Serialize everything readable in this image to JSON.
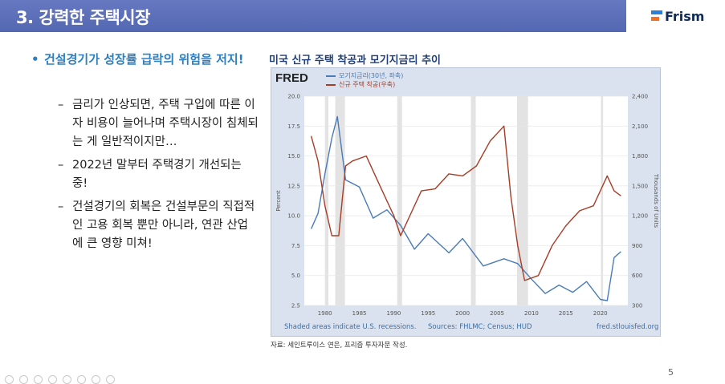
{
  "header": {
    "title": "3. 강력한 주택시장"
  },
  "logo": {
    "text": "Frism",
    "colors": [
      "#2a7fd6",
      "#f36f21"
    ]
  },
  "main_bullet": "건설경기가 성장률 급락의 위험을 저지!",
  "sub_bullets": [
    "금리가 인상되면, 주택 구입에 따른 이자 비용이 늘어나며 주택시장이 침체되는 게 일반적이지만…",
    "2022년 말부터 주택경기 개선되는 중!",
    "건설경기의 회복은 건설부문의 직접적인 고용 회복 뿐만 아니라, 연관 산업에 큰 영향 미쳐!"
  ],
  "chart_title": "미국 신규 주택 착공과 모기지금리 추이",
  "chart_data": {
    "type": "line",
    "logo": "FRED",
    "series": [
      {
        "name": "모기지금리(30년, 좌축)",
        "color": "#4a7bb7",
        "axis": "left",
        "x": [
          1978,
          1979,
          1980,
          1981,
          1981.8,
          1983,
          1985,
          1987,
          1989,
          1991,
          1993,
          1995,
          1998,
          2000,
          2003,
          2006,
          2008,
          2010,
          2012,
          2014,
          2016,
          2018,
          2020,
          2021,
          2022,
          2023
        ],
        "y": [
          8.9,
          10.2,
          13.5,
          16.5,
          18.3,
          13.0,
          12.4,
          9.8,
          10.5,
          9.2,
          7.2,
          8.5,
          6.9,
          8.1,
          5.8,
          6.4,
          6.0,
          4.7,
          3.5,
          4.2,
          3.6,
          4.5,
          3.0,
          2.9,
          6.5,
          7.0
        ]
      },
      {
        "name": "신규 주택 착공(우축)",
        "color": "#a63d26",
        "axis": "right",
        "x": [
          1978,
          1979,
          1980,
          1981,
          1982,
          1983,
          1984,
          1986,
          1988,
          1990,
          1991,
          1994,
          1996,
          1998,
          2000,
          2002,
          2004,
          2006,
          2007,
          2008,
          2009,
          2011,
          2013,
          2015,
          2017,
          2019,
          2021,
          2022,
          2023
        ],
        "y": [
          2000,
          1750,
          1300,
          1000,
          1000,
          1700,
          1750,
          1800,
          1500,
          1200,
          1000,
          1450,
          1470,
          1620,
          1600,
          1700,
          1950,
          2100,
          1400,
          900,
          550,
          600,
          900,
          1100,
          1250,
          1300,
          1600,
          1450,
          1400
        ]
      }
    ],
    "xlim": [
      1977,
      2024
    ],
    "x_ticks": [
      "1980",
      "1985",
      "1990",
      "1995",
      "2000",
      "2005",
      "2010",
      "2015",
      "2020"
    ],
    "x_tick_values": [
      1980,
      1985,
      1990,
      1995,
      2000,
      2005,
      2010,
      2015,
      2020
    ],
    "y_left": {
      "label": "Percent",
      "range": [
        2.5,
        20.0
      ],
      "ticks": [
        "2.5",
        "5.0",
        "7.5",
        "10.0",
        "12.5",
        "15.0",
        "17.5",
        "20.0"
      ]
    },
    "y_right": {
      "label": "Thousands of Units",
      "range": [
        300,
        2400
      ],
      "ticks": [
        "300",
        "600",
        "900",
        "1,200",
        "1,500",
        "1,800",
        "2,100",
        "2,400"
      ]
    },
    "recessions": [
      [
        1980.0,
        1980.5
      ],
      [
        1981.5,
        1982.9
      ],
      [
        1990.5,
        1991.2
      ],
      [
        2001.2,
        2001.9
      ],
      [
        2007.9,
        2009.5
      ],
      [
        2020.1,
        2020.4
      ]
    ],
    "grid": "horizontal",
    "legend_placement": "top-left"
  },
  "chart_footer": {
    "left": "Shaded areas indicate U.S. recessions.",
    "middle": "Sources: FHLMC; Census; HUD",
    "right": "fred.stlouisfed.org"
  },
  "source_note": "자료: 세인트루이스 연은, 프리즘 투자자문 작성.",
  "page_number": "5"
}
